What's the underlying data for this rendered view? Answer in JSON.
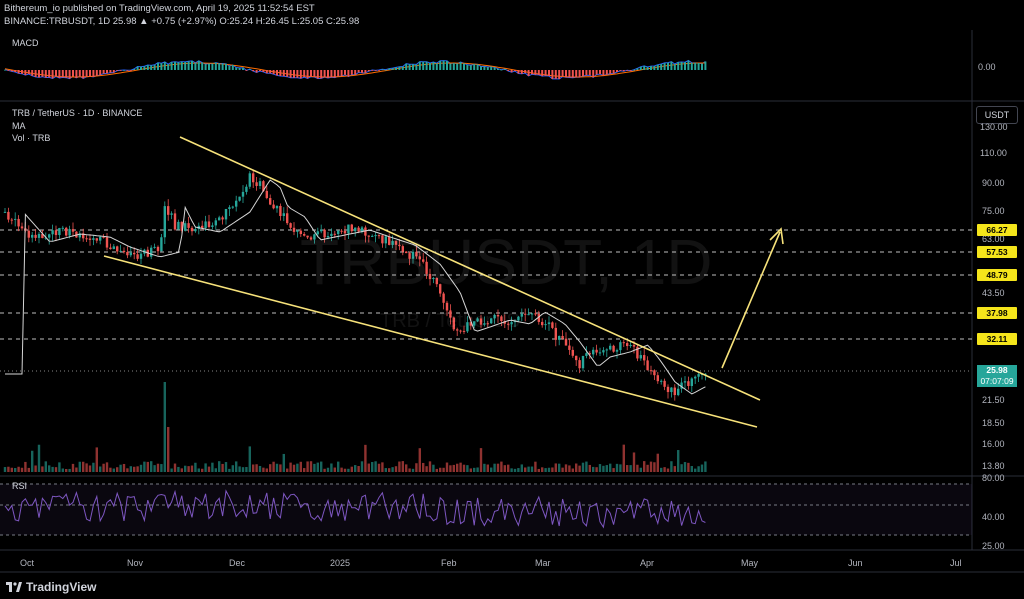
{
  "header": {
    "published_line": "Bithereum_io published on TradingView.com, April 19, 2025 11:52:54 EST",
    "symbol_line": "BINANCE:TRBUSDT, 1D 25.98 ▲ +0.75 (+2.97%) O:25.24 H:26.45 L:25.05 C:25.98"
  },
  "macd": {
    "label": "MACD",
    "value": "0.00"
  },
  "main": {
    "title": "TRB / TetherUS · 1D · BINANCE",
    "ma_label": "MA",
    "vol_label": "Vol · TRB",
    "watermark_symbol": "TRBUSDT, 1D",
    "watermark_sub": "TRB / TetherUS",
    "unit": "USDT"
  },
  "price_axis": [
    "130.00",
    "110.00",
    "90.00",
    "75.00",
    "63.00",
    "43.50",
    "21.50",
    "18.50",
    "16.00",
    "13.80"
  ],
  "price_levels": [
    "66.27",
    "57.53",
    "48.79",
    "37.98",
    "32.11"
  ],
  "current_price": {
    "value": "25.98",
    "countdown": "07:07:09"
  },
  "rsi": {
    "label": "RSI",
    "axis": [
      "80.00",
      "40.00",
      "25.00"
    ]
  },
  "time_axis": [
    "Oct",
    "Nov",
    "Dec",
    "2025",
    "Feb",
    "Mar",
    "Apr",
    "May",
    "Jun",
    "Jul"
  ],
  "footer": {
    "logo": "TradingView"
  },
  "colors": {
    "up": "#26a69a",
    "down": "#ef5350",
    "trend": "#f7e27a",
    "level_tag": "#f5e51b"
  }
}
